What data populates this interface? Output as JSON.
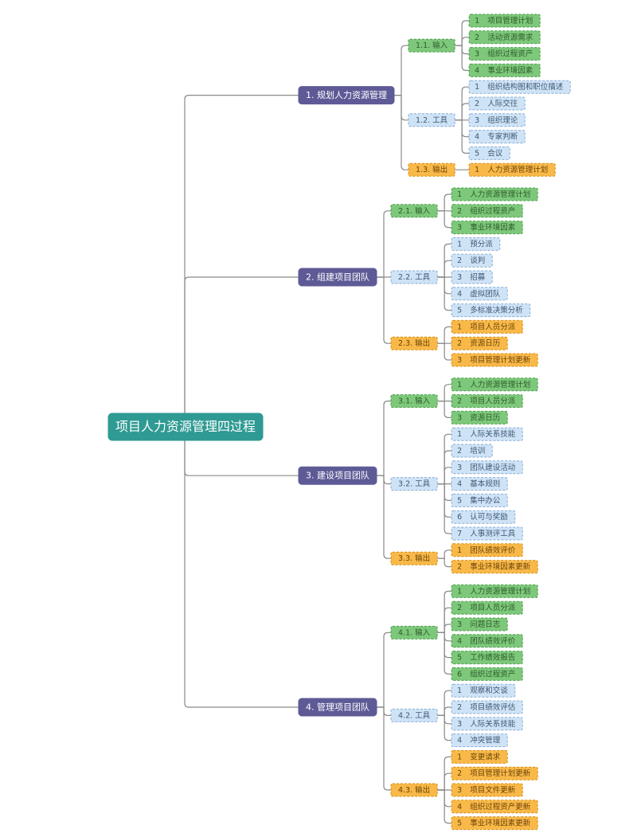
{
  "root": "项目人力资源管理四过程",
  "branches": [
    {
      "label": "1. 规划人力资源管理",
      "groups": [
        {
          "label": "1.1. 输入",
          "items": [
            {
              "no": "1",
              "text": "项目管理计划"
            },
            {
              "no": "2",
              "text": "活动资源需求"
            },
            {
              "no": "3",
              "text": "组织过程资产"
            },
            {
              "no": "4",
              "text": "事业环境因素"
            }
          ]
        },
        {
          "label": "1.2. 工具",
          "items": [
            {
              "no": "1",
              "text": "组织结构图和职位描述"
            },
            {
              "no": "2",
              "text": "人际交往"
            },
            {
              "no": "3",
              "text": "组织理论"
            },
            {
              "no": "4",
              "text": "专家判断"
            },
            {
              "no": "5",
              "text": "会议"
            }
          ]
        },
        {
          "label": "1.3. 输出",
          "items": [
            {
              "no": "1",
              "text": "人力资源管理计划"
            }
          ]
        }
      ]
    },
    {
      "label": "2. 组建项目团队",
      "groups": [
        {
          "label": "2.1. 输入",
          "items": [
            {
              "no": "1",
              "text": "人力资源管理计划"
            },
            {
              "no": "2",
              "text": "组织过程资产"
            },
            {
              "no": "3",
              "text": "事业环境因素"
            }
          ]
        },
        {
          "label": "2.2. 工具",
          "items": [
            {
              "no": "1",
              "text": "预分派"
            },
            {
              "no": "2",
              "text": "谈判"
            },
            {
              "no": "3",
              "text": "招募"
            },
            {
              "no": "4",
              "text": "虚拟团队"
            },
            {
              "no": "5",
              "text": "多标准决策分析"
            }
          ]
        },
        {
          "label": "2.3. 输出",
          "items": [
            {
              "no": "1",
              "text": "项目人员分派"
            },
            {
              "no": "2",
              "text": "资源日历"
            },
            {
              "no": "3",
              "text": "项目管理计划更新"
            }
          ]
        }
      ]
    },
    {
      "label": "3. 建设项目团队",
      "groups": [
        {
          "label": "3.1. 输入",
          "items": [
            {
              "no": "1",
              "text": "人力资源管理计划"
            },
            {
              "no": "2",
              "text": "项目人员分派"
            },
            {
              "no": "3",
              "text": "资源日历"
            }
          ]
        },
        {
          "label": "3.2. 工具",
          "items": [
            {
              "no": "1",
              "text": "人际关系技能"
            },
            {
              "no": "2",
              "text": "培训"
            },
            {
              "no": "3",
              "text": "团队建设活动"
            },
            {
              "no": "4",
              "text": "基本规则"
            },
            {
              "no": "5",
              "text": "集中办公"
            },
            {
              "no": "6",
              "text": "认可与奖励"
            },
            {
              "no": "7",
              "text": "人事测评工具"
            }
          ]
        },
        {
          "label": "3.3. 输出",
          "items": [
            {
              "no": "1",
              "text": "团队绩效评价"
            },
            {
              "no": "2",
              "text": "事业环境因素更新"
            }
          ]
        }
      ]
    },
    {
      "label": "4. 管理项目团队",
      "groups": [
        {
          "label": "4.1. 输入",
          "items": [
            {
              "no": "1",
              "text": "人力资源管理计划"
            },
            {
              "no": "2",
              "text": "项目人员分派"
            },
            {
              "no": "3",
              "text": "问题日志"
            },
            {
              "no": "4",
              "text": "团队绩效评价"
            },
            {
              "no": "5",
              "text": "工作绩效报告"
            },
            {
              "no": "6",
              "text": "组织过程资产"
            }
          ]
        },
        {
          "label": "4.2. 工具",
          "items": [
            {
              "no": "1",
              "text": "观察和交谈"
            },
            {
              "no": "2",
              "text": "项目绩效评估"
            },
            {
              "no": "3",
              "text": "人际关系技能"
            },
            {
              "no": "4",
              "text": "冲突管理"
            }
          ]
        },
        {
          "label": "4.3. 输出",
          "items": [
            {
              "no": "1",
              "text": "变更请求"
            },
            {
              "no": "2",
              "text": "项目管理计划更新"
            },
            {
              "no": "3",
              "text": "项目文件更新"
            },
            {
              "no": "4",
              "text": "组织过程资产更新"
            },
            {
              "no": "5",
              "text": "事业环境因素更新"
            }
          ]
        }
      ]
    }
  ]
}
